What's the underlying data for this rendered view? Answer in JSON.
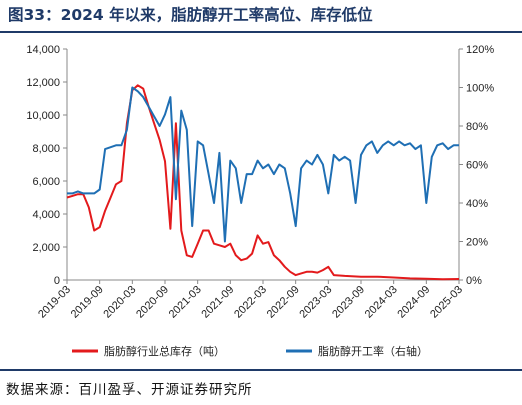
{
  "header": {
    "title": "图33：2024 年以来，脂肪醇开工率高位、库存低位"
  },
  "footer": {
    "source": "数据来源：百川盈孚、开源证券研究所"
  },
  "chart_data": {
    "type": "line",
    "title": "图33：2024 年以来，脂肪醇开工率高位、库存低位",
    "x_axis": {
      "type": "date",
      "range": [
        "2019-03",
        "2025-03"
      ],
      "tick_labels": [
        "2019-03",
        "2019-09",
        "2020-03",
        "2020-09",
        "2021-03",
        "2021-09",
        "2022-03",
        "2022-09",
        "2023-03",
        "2023-09",
        "2024-03",
        "2024-09",
        "2025-03"
      ],
      "rotation": -45
    },
    "y_axis_left": {
      "range": [
        0,
        14000
      ],
      "ticks": [
        "0",
        "2,000",
        "4,000",
        "6,000",
        "8,000",
        "10,000",
        "12,000",
        "14,000"
      ]
    },
    "y_axis_right": {
      "range": [
        0,
        120
      ],
      "unit": "%",
      "ticks": [
        "0%",
        "20%",
        "40%",
        "60%",
        "80%",
        "100%",
        "120%"
      ]
    },
    "grid": false,
    "legend_position": "bottom",
    "colors": {
      "inventory": "#e31a1c",
      "operating_rate": "#1f6fb4",
      "axis": "#888888"
    },
    "series": [
      {
        "name": "脂肪醇行业总库存（吨）",
        "axis": "left",
        "color": "#e31a1c",
        "points": [
          [
            "2019-03",
            5000
          ],
          [
            "2019-04",
            5100
          ],
          [
            "2019-05",
            5200
          ],
          [
            "2019-06",
            5200
          ],
          [
            "2019-07",
            4400
          ],
          [
            "2019-08",
            3000
          ],
          [
            "2019-09",
            3200
          ],
          [
            "2019-10",
            4200
          ],
          [
            "2019-11",
            5000
          ],
          [
            "2019-12",
            5800
          ],
          [
            "2020-01",
            6000
          ],
          [
            "2020-02",
            9500
          ],
          [
            "2020-03",
            11500
          ],
          [
            "2020-04",
            11800
          ],
          [
            "2020-05",
            11600
          ],
          [
            "2020-06",
            10500
          ],
          [
            "2020-07",
            9500
          ],
          [
            "2020-08",
            8500
          ],
          [
            "2020-09",
            7200
          ],
          [
            "2020-10",
            3100
          ],
          [
            "2020-11",
            9500
          ],
          [
            "2020-12",
            3000
          ],
          [
            "2021-01",
            1500
          ],
          [
            "2021-02",
            1400
          ],
          [
            "2021-03",
            2200
          ],
          [
            "2021-04",
            3000
          ],
          [
            "2021-05",
            3000
          ],
          [
            "2021-06",
            2200
          ],
          [
            "2021-07",
            2100
          ],
          [
            "2021-08",
            2000
          ],
          [
            "2021-09",
            2200
          ],
          [
            "2021-10",
            1500
          ],
          [
            "2021-11",
            1200
          ],
          [
            "2021-12",
            1300
          ],
          [
            "2022-01",
            1600
          ],
          [
            "2022-02",
            2700
          ],
          [
            "2022-03",
            2200
          ],
          [
            "2022-04",
            2300
          ],
          [
            "2022-05",
            1500
          ],
          [
            "2022-06",
            1200
          ],
          [
            "2022-07",
            800
          ],
          [
            "2022-08",
            500
          ],
          [
            "2022-09",
            300
          ],
          [
            "2022-10",
            400
          ],
          [
            "2022-11",
            500
          ],
          [
            "2022-12",
            500
          ],
          [
            "2023-01",
            450
          ],
          [
            "2023-02",
            600
          ],
          [
            "2023-03",
            800
          ],
          [
            "2023-04",
            300
          ],
          [
            "2023-06",
            250
          ],
          [
            "2023-09",
            200
          ],
          [
            "2023-12",
            200
          ],
          [
            "2024-03",
            150
          ],
          [
            "2024-06",
            100
          ],
          [
            "2024-09",
            80
          ],
          [
            "2024-12",
            50
          ],
          [
            "2025-03",
            60
          ]
        ]
      },
      {
        "name": "脂肪醇开工率（右轴）",
        "axis": "right",
        "color": "#1f6fb4",
        "points": [
          [
            "2019-03",
            45
          ],
          [
            "2019-04",
            45
          ],
          [
            "2019-05",
            46
          ],
          [
            "2019-06",
            45
          ],
          [
            "2019-07",
            45
          ],
          [
            "2019-08",
            45
          ],
          [
            "2019-09",
            47
          ],
          [
            "2019-10",
            68
          ],
          [
            "2019-11",
            69
          ],
          [
            "2019-12",
            70
          ],
          [
            "2020-01",
            70
          ],
          [
            "2020-02",
            78
          ],
          [
            "2020-03",
            100
          ],
          [
            "2020-04",
            98
          ],
          [
            "2020-05",
            95
          ],
          [
            "2020-06",
            90
          ],
          [
            "2020-07",
            85
          ],
          [
            "2020-08",
            80
          ],
          [
            "2020-09",
            86
          ],
          [
            "2020-10",
            95
          ],
          [
            "2020-11",
            42
          ],
          [
            "2020-12",
            88
          ],
          [
            "2021-01",
            78
          ],
          [
            "2021-02",
            28
          ],
          [
            "2021-03",
            72
          ],
          [
            "2021-04",
            70
          ],
          [
            "2021-05",
            55
          ],
          [
            "2021-06",
            40
          ],
          [
            "2021-07",
            66
          ],
          [
            "2021-08",
            20
          ],
          [
            "2021-09",
            62
          ],
          [
            "2021-10",
            58
          ],
          [
            "2021-11",
            40
          ],
          [
            "2021-12",
            55
          ],
          [
            "2022-01",
            55
          ],
          [
            "2022-02",
            62
          ],
          [
            "2022-03",
            58
          ],
          [
            "2022-04",
            60
          ],
          [
            "2022-05",
            55
          ],
          [
            "2022-06",
            60
          ],
          [
            "2022-07",
            58
          ],
          [
            "2022-08",
            45
          ],
          [
            "2022-09",
            28
          ],
          [
            "2022-10",
            58
          ],
          [
            "2022-11",
            62
          ],
          [
            "2022-12",
            60
          ],
          [
            "2023-01",
            65
          ],
          [
            "2023-02",
            60
          ],
          [
            "2023-03",
            45
          ],
          [
            "2023-04",
            65
          ],
          [
            "2023-05",
            62
          ],
          [
            "2023-06",
            64
          ],
          [
            "2023-07",
            62
          ],
          [
            "2023-08",
            40
          ],
          [
            "2023-09",
            65
          ],
          [
            "2023-10",
            70
          ],
          [
            "2023-11",
            72
          ],
          [
            "2023-12",
            66
          ],
          [
            "2024-01",
            70
          ],
          [
            "2024-02",
            72
          ],
          [
            "2024-03",
            70
          ],
          [
            "2024-04",
            72
          ],
          [
            "2024-05",
            70
          ],
          [
            "2024-06",
            71
          ],
          [
            "2024-07",
            68
          ],
          [
            "2024-08",
            70
          ],
          [
            "2024-09",
            40
          ],
          [
            "2024-10",
            64
          ],
          [
            "2024-11",
            70
          ],
          [
            "2024-12",
            71
          ],
          [
            "2025-01",
            68
          ],
          [
            "2025-02",
            70
          ],
          [
            "2025-03",
            70
          ]
        ]
      }
    ]
  }
}
